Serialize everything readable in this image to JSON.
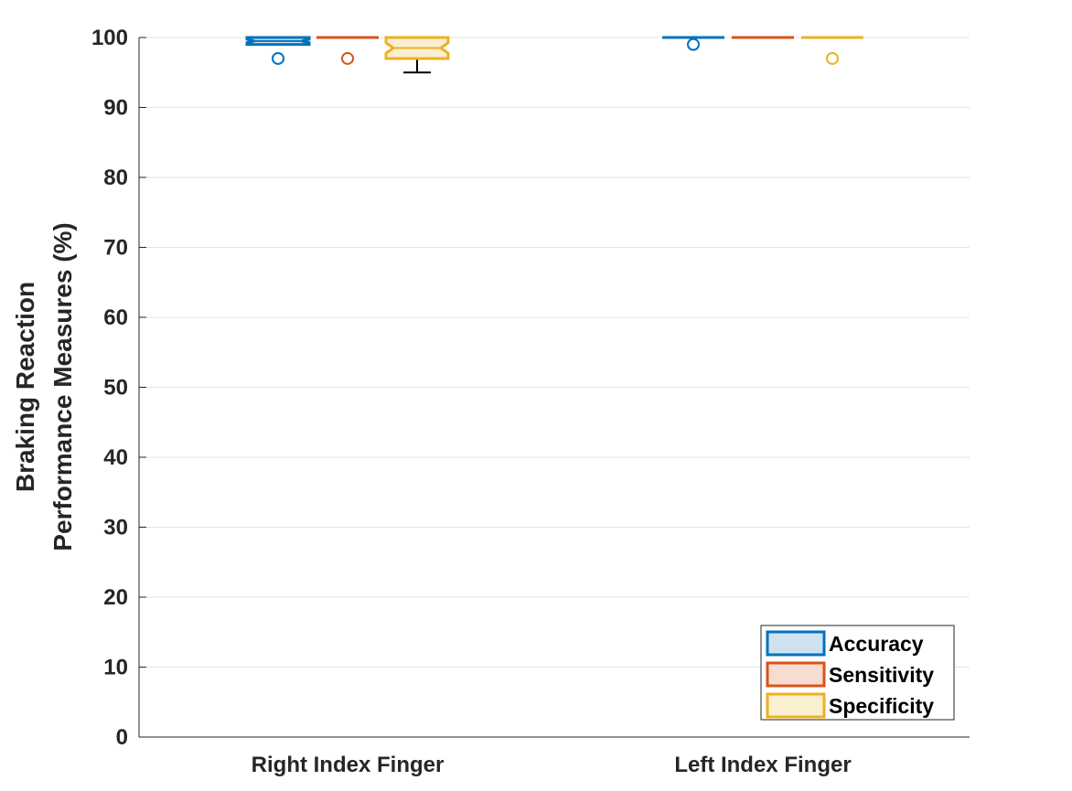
{
  "chart_data": {
    "type": "boxplot",
    "ylabel_lines": [
      "Braking Reaction",
      "Performance Measures (%)"
    ],
    "categories": [
      "Right Index Finger",
      "Left Index Finger"
    ],
    "ylim": [
      0,
      100
    ],
    "yticks": [
      0,
      10,
      20,
      30,
      40,
      50,
      60,
      70,
      80,
      90,
      100
    ],
    "grid": "horizontal",
    "legend_position": "bottom-right",
    "series": [
      {
        "name": "Accuracy",
        "color": "#0072BD",
        "fill": "#CFE2F0",
        "boxes": [
          {
            "q1": 99,
            "median": 99.5,
            "q3": 100,
            "min": 99,
            "max": 100,
            "outliers": [
              97
            ]
          },
          {
            "q1": 100,
            "median": 100,
            "q3": 100,
            "min": 100,
            "max": 100,
            "outliers": [
              99
            ]
          }
        ]
      },
      {
        "name": "Sensitivity",
        "color": "#D95319",
        "fill": "#F7DDD1",
        "boxes": [
          {
            "q1": 100,
            "median": 100,
            "q3": 100,
            "min": 100,
            "max": 100,
            "outliers": [
              97
            ]
          },
          {
            "q1": 100,
            "median": 100,
            "q3": 100,
            "min": 100,
            "max": 100,
            "outliers": []
          }
        ]
      },
      {
        "name": "Specificity",
        "color": "#EDB120",
        "fill": "#FBEFD2",
        "boxes": [
          {
            "q1": 97,
            "median": 98.5,
            "q3": 100,
            "min": 95,
            "max": 100,
            "outliers": []
          },
          {
            "q1": 100,
            "median": 100,
            "q3": 100,
            "min": 100,
            "max": 100,
            "outliers": [
              97
            ]
          }
        ]
      }
    ]
  }
}
